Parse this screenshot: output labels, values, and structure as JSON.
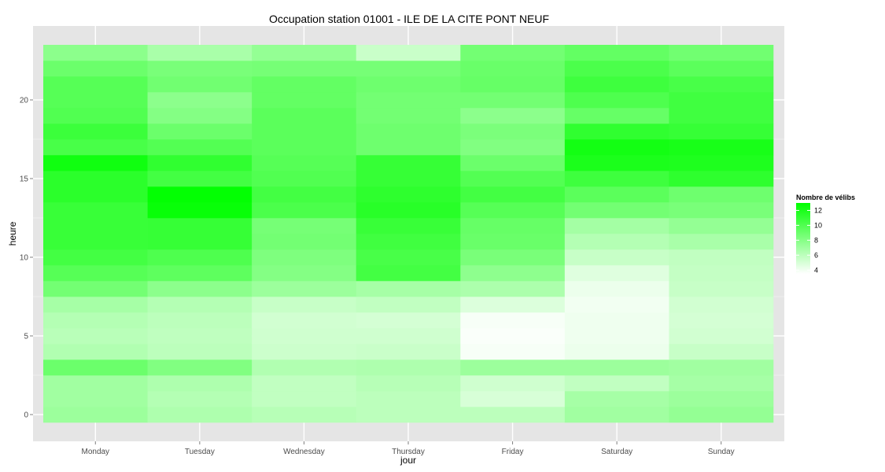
{
  "chart_data": {
    "type": "heatmap",
    "title": "Occupation station 01001 - ILE DE LA CITE PONT NEUF",
    "xlabel": "jour",
    "ylabel": "heure",
    "categories": [
      "Monday",
      "Tuesday",
      "Wednesday",
      "Thursday",
      "Friday",
      "Saturday",
      "Sunday"
    ],
    "y_hours": [
      0,
      1,
      2,
      3,
      4,
      5,
      6,
      7,
      8,
      9,
      10,
      11,
      12,
      13,
      14,
      15,
      16,
      17,
      18,
      19,
      20,
      21,
      22,
      23
    ],
    "y_ticks": [
      0,
      5,
      10,
      15,
      20
    ],
    "ylim": [
      -0.5,
      23.5
    ],
    "grid": true,
    "values": [
      [
        7.2,
        6.5,
        6.2,
        6.0,
        6.0,
        7.0,
        7.5
      ],
      [
        7.0,
        6.3,
        5.8,
        6.0,
        5.0,
        6.8,
        7.2
      ],
      [
        7.0,
        6.5,
        5.8,
        6.2,
        5.3,
        5.8,
        6.8
      ],
      [
        9.0,
        8.2,
        6.4,
        6.5,
        7.2,
        7.2,
        7.0
      ],
      [
        6.4,
        6.0,
        5.4,
        5.5,
        3.8,
        4.2,
        5.6
      ],
      [
        6.1,
        5.9,
        5.3,
        5.3,
        3.7,
        4.1,
        5.2
      ],
      [
        6.3,
        6.0,
        5.2,
        5.1,
        3.8,
        4.1,
        5.1
      ],
      [
        6.8,
        6.3,
        5.6,
        5.8,
        4.8,
        4.0,
        5.2
      ],
      [
        8.7,
        7.8,
        7.2,
        6.8,
        6.6,
        4.2,
        5.6
      ],
      [
        9.8,
        9.5,
        8.1,
        10.5,
        7.7,
        4.7,
        5.7
      ],
      [
        10.5,
        10.1,
        8.3,
        10.3,
        8.5,
        5.6,
        5.8
      ],
      [
        10.9,
        11.0,
        8.7,
        10.6,
        9.1,
        6.3,
        6.7
      ],
      [
        10.9,
        11.0,
        8.6,
        10.9,
        9.2,
        6.9,
        7.5
      ],
      [
        10.9,
        12.7,
        10.2,
        11.5,
        9.8,
        8.7,
        8.5
      ],
      [
        11.4,
        12.9,
        10.5,
        11.3,
        10.5,
        9.6,
        8.9
      ],
      [
        11.4,
        10.5,
        10.0,
        11.0,
        9.9,
        10.7,
        11.3
      ],
      [
        12.4,
        11.2,
        9.8,
        11.0,
        9.0,
        12.0,
        11.9
      ],
      [
        10.3,
        9.9,
        9.6,
        8.9,
        8.2,
        12.3,
        12.1
      ],
      [
        10.8,
        9.0,
        9.6,
        8.9,
        8.4,
        11.2,
        11.0
      ],
      [
        10.0,
        8.1,
        9.6,
        8.7,
        7.8,
        9.2,
        10.6
      ],
      [
        9.8,
        7.8,
        9.3,
        8.7,
        8.7,
        10.1,
        10.6
      ],
      [
        9.8,
        8.8,
        9.3,
        8.9,
        9.2,
        10.7,
        10.3
      ],
      [
        9.0,
        8.5,
        8.6,
        8.6,
        9.1,
        10.2,
        9.6
      ],
      [
        7.8,
        6.7,
        7.5,
        5.5,
        8.7,
        9.3,
        8.8
      ]
    ],
    "legend": {
      "title": "Nombre de vélibs",
      "placement": "right",
      "ticks": [
        4,
        6,
        8,
        10,
        12
      ],
      "range": [
        3.5,
        13
      ],
      "low_color": "#ffffff",
      "high_color": "#00ff00"
    },
    "panel_color": "#e5e5e5",
    "grid_color": "#ffffff"
  }
}
